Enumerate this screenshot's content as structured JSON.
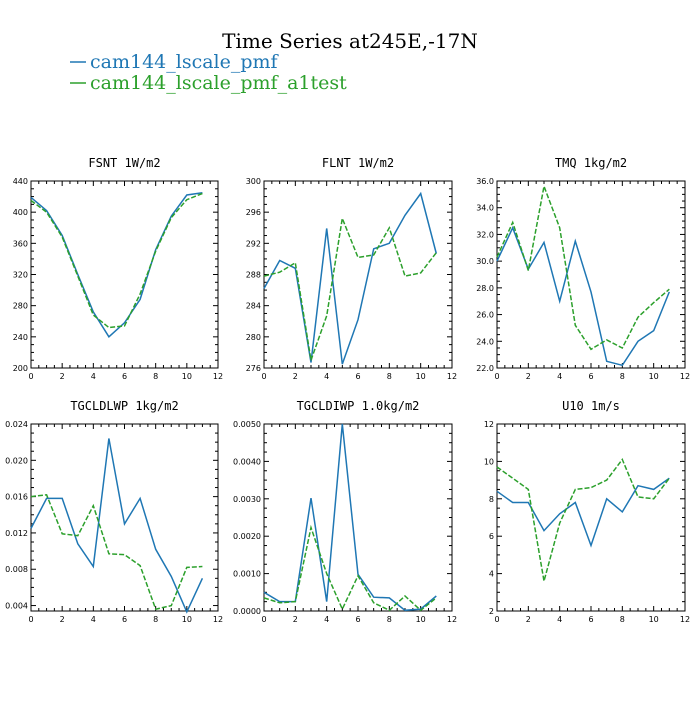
{
  "colors": {
    "series1": "#1f77b4",
    "series2": "#2ca02c",
    "axis": "#000000"
  },
  "header": {
    "title": "Time Series at245E,-17N"
  },
  "legend": [
    {
      "label": "cam144_lscale_pmf",
      "color": "#1f77b4",
      "dash": false
    },
    {
      "label": "cam144_lscale_pmf_a1test",
      "color": "#2ca02c",
      "dash": true
    }
  ],
  "chart_data": [
    {
      "type": "line",
      "title": "FSNT   1W/m2",
      "xlim": [
        0,
        12
      ],
      "ylim": [
        200,
        440
      ],
      "xticks": [
        "0",
        "2",
        "4",
        "6",
        "8",
        "10",
        "12"
      ],
      "yticks": [
        "200",
        "240",
        "280",
        "320",
        "360",
        "400",
        "440"
      ],
      "x": [
        0,
        1,
        2,
        3,
        4,
        5,
        6,
        7,
        8,
        9,
        10,
        11
      ],
      "series": [
        {
          "name": "cam144_lscale_pmf",
          "values": [
            419,
            402,
            370,
            320,
            272,
            240,
            258,
            288,
            352,
            395,
            422,
            425
          ]
        },
        {
          "name": "cam144_lscale_pmf_a1test",
          "values": [
            415,
            400,
            368,
            318,
            268,
            252,
            254,
            295,
            350,
            393,
            416,
            424
          ]
        }
      ]
    },
    {
      "type": "line",
      "title": "FLNT   1W/m2",
      "xlim": [
        0,
        12
      ],
      "ylim": [
        276,
        300
      ],
      "xticks": [
        "0",
        "2",
        "4",
        "6",
        "8",
        "10",
        "12"
      ],
      "yticks": [
        "276",
        "280",
        "284",
        "288",
        "292",
        "296",
        "300"
      ],
      "x": [
        0,
        1,
        2,
        3,
        4,
        5,
        6,
        7,
        8,
        9,
        10,
        11
      ],
      "series": [
        {
          "name": "cam144_lscale_pmf",
          "values": [
            286.2,
            289.8,
            288.8,
            276.7,
            293.9,
            276.5,
            282.2,
            291.3,
            292.0,
            295.6,
            298.4,
            290.7
          ]
        },
        {
          "name": "cam144_lscale_pmf_a1test",
          "values": [
            287.8,
            288.3,
            289.5,
            277.0,
            282.7,
            295.2,
            290.2,
            290.5,
            294.0,
            287.8,
            288.2,
            290.8
          ]
        }
      ]
    },
    {
      "type": "line",
      "title": "TMQ   1kg/m2",
      "xlim": [
        0,
        12
      ],
      "ylim": [
        22,
        36
      ],
      "xticks": [
        "0",
        "2",
        "4",
        "6",
        "8",
        "10",
        "12"
      ],
      "yticks": [
        "22.0",
        "24.0",
        "26.0",
        "28.0",
        "30.0",
        "32.0",
        "34.0",
        "36.0"
      ],
      "x": [
        0,
        1,
        2,
        3,
        4,
        5,
        6,
        7,
        8,
        9,
        10,
        11
      ],
      "series": [
        {
          "name": "cam144_lscale_pmf",
          "values": [
            30.0,
            32.5,
            29.4,
            31.4,
            27.0,
            31.5,
            27.7,
            22.5,
            22.2,
            24.0,
            24.8,
            27.7
          ]
        },
        {
          "name": "cam144_lscale_pmf_a1test",
          "values": [
            30.3,
            32.9,
            29.3,
            35.6,
            32.5,
            25.2,
            23.4,
            24.1,
            23.5,
            25.8,
            26.9,
            27.9
          ]
        }
      ]
    },
    {
      "type": "line",
      "title": "TGCLDLWP   1kg/m2",
      "xlim": [
        0,
        12
      ],
      "ylim": [
        0.0034,
        0.024
      ],
      "xticks": [
        "0",
        "2",
        "4",
        "6",
        "8",
        "10",
        "12"
      ],
      "yticks": [
        "0.004",
        "0.008",
        "0.012",
        "0.016",
        "0.020",
        "0.024"
      ],
      "x": [
        0,
        1,
        2,
        3,
        4,
        5,
        6,
        7,
        8,
        9,
        10,
        11
      ],
      "series": [
        {
          "name": "cam144_lscale_pmf",
          "values": [
            0.0125,
            0.0158,
            0.0158,
            0.0108,
            0.0083,
            0.0224,
            0.013,
            0.0158,
            0.0102,
            0.0072,
            0.0033,
            0.007
          ]
        },
        {
          "name": "cam144_lscale_pmf_a1test",
          "values": [
            0.016,
            0.0162,
            0.0119,
            0.0117,
            0.015,
            0.0097,
            0.0096,
            0.0084,
            0.0036,
            0.004,
            0.0082,
            0.0083
          ]
        }
      ]
    },
    {
      "type": "line",
      "title": "TGCLDIWP   1.0kg/m2",
      "xlim": [
        0,
        12
      ],
      "ylim": [
        0,
        0.005
      ],
      "xticks": [
        "0",
        "2",
        "4",
        "6",
        "8",
        "10",
        "12"
      ],
      "yticks": [
        "0.0000",
        "0.0010",
        "0.0020",
        "0.0030",
        "0.0040",
        "0.0050"
      ],
      "x": [
        0,
        1,
        2,
        3,
        4,
        5,
        6,
        7,
        8,
        9,
        10,
        11
      ],
      "series": [
        {
          "name": "cam144_lscale_pmf",
          "values": [
            0.0005,
            0.00025,
            0.00025,
            0.00302,
            0.00025,
            0.005,
            0.00098,
            0.00037,
            0.00035,
            2e-05,
            5e-05,
            0.0004
          ]
        },
        {
          "name": "cam144_lscale_pmf_a1test",
          "values": [
            0.00035,
            0.00022,
            0.00025,
            0.00223,
            0.001,
            5e-05,
            0.00094,
            0.00022,
            2e-05,
            0.0004,
            2e-05,
            0.00035
          ]
        }
      ]
    },
    {
      "type": "line",
      "title": "U10   1m/s",
      "xlim": [
        0,
        12
      ],
      "ylim": [
        2,
        12
      ],
      "xticks": [
        "0",
        "2",
        "4",
        "6",
        "8",
        "10",
        "12"
      ],
      "yticks": [
        "2",
        "4",
        "6",
        "8",
        "10",
        "12"
      ],
      "x": [
        0,
        1,
        2,
        3,
        4,
        5,
        6,
        7,
        8,
        9,
        10,
        11
      ],
      "series": [
        {
          "name": "cam144_lscale_pmf",
          "values": [
            8.4,
            7.8,
            7.8,
            6.3,
            7.2,
            7.8,
            5.5,
            8.0,
            7.3,
            8.7,
            8.5,
            9.1
          ]
        },
        {
          "name": "cam144_lscale_pmf_a1test",
          "values": [
            9.7,
            9.1,
            8.5,
            3.6,
            6.7,
            8.5,
            8.6,
            9.0,
            10.1,
            8.1,
            8.0,
            9.1
          ]
        }
      ]
    }
  ]
}
